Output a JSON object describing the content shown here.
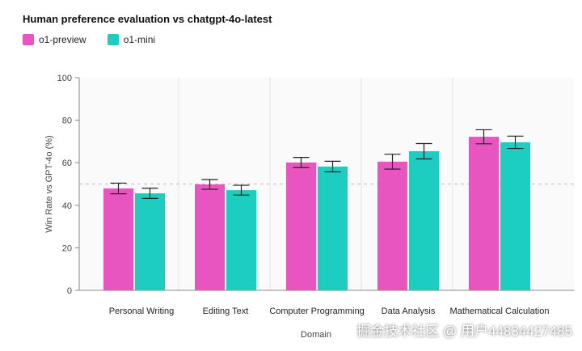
{
  "chart_data": {
    "type": "bar",
    "title": "Human preference evaluation vs chatgpt-4o-latest",
    "xlabel": "Domain",
    "ylabel": "Win Rate vs GPT-4o (%)",
    "ylim": [
      0,
      100
    ],
    "yticks": [
      0,
      20,
      40,
      60,
      80,
      100
    ],
    "reference_line": 50,
    "legend_position": "top-left",
    "categories": [
      "Personal Writing",
      "Editing Text",
      "Computer Programming",
      "Data Analysis",
      "Mathematical Calculation"
    ],
    "series": [
      {
        "name": "o1-preview",
        "color": "#e955c0",
        "values": [
          47.9,
          49.8,
          60.1,
          60.5,
          72.2
        ],
        "errors": [
          2.5,
          2.3,
          2.4,
          3.5,
          3.3
        ]
      },
      {
        "name": "o1-mini",
        "color": "#1ccdc0",
        "values": [
          45.6,
          47.1,
          58.2,
          65.4,
          69.6
        ],
        "errors": [
          2.4,
          2.3,
          2.5,
          3.6,
          2.9
        ]
      }
    ]
  },
  "watermark": "掘金技术社区 @ 用户44834427485"
}
